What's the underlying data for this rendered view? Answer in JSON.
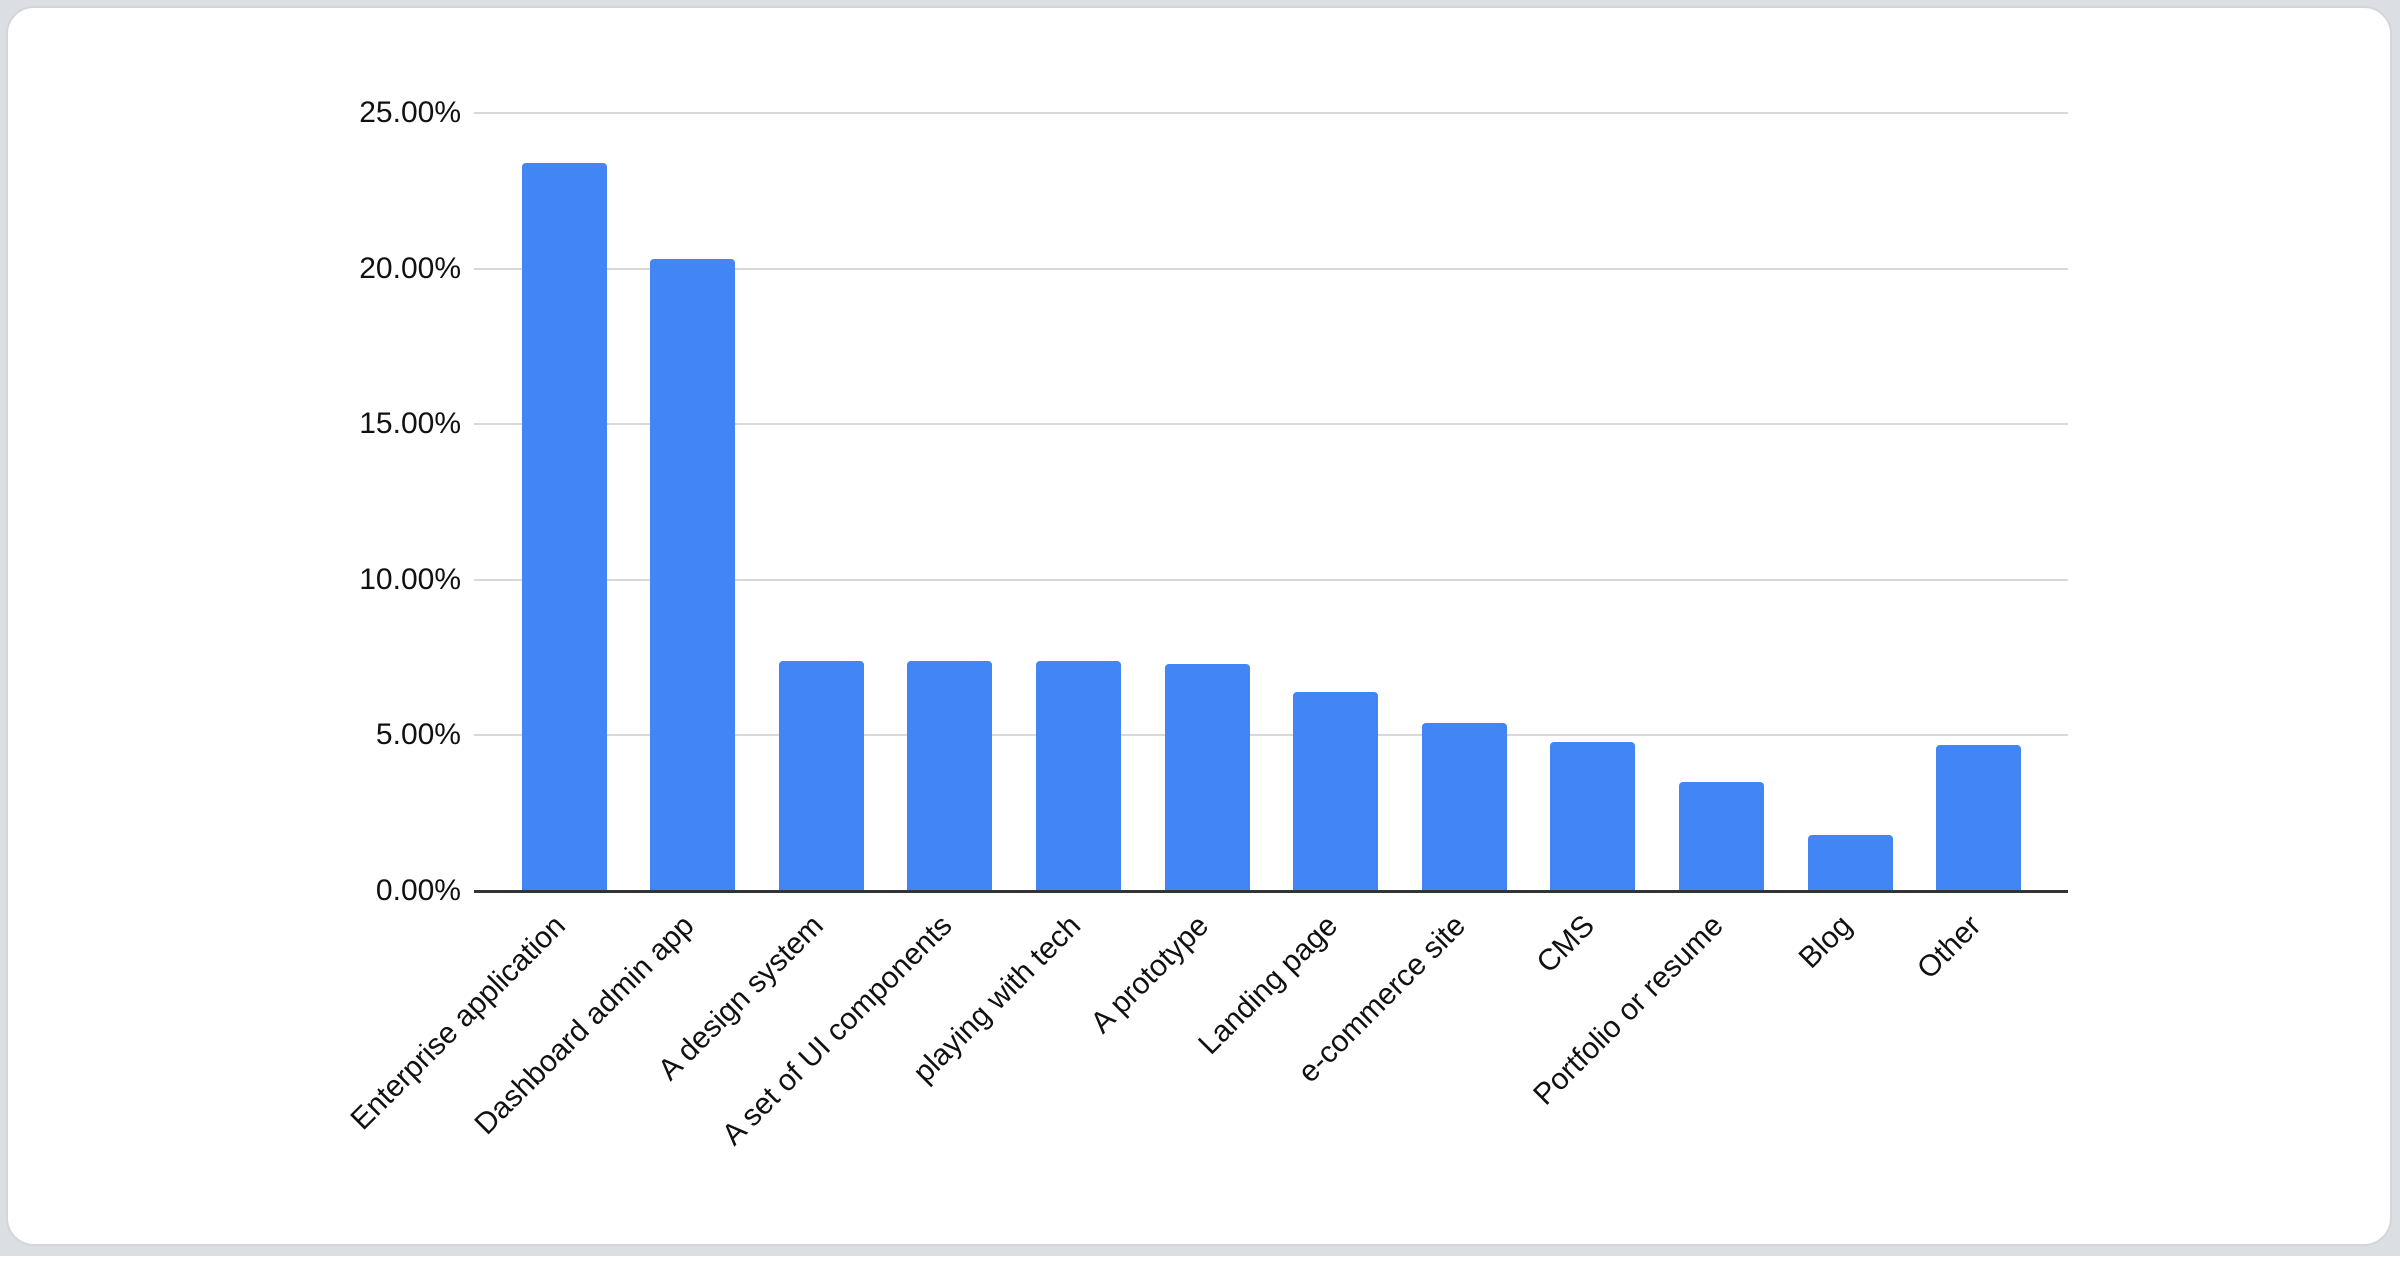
{
  "page": {
    "background_color": "#dbdee2",
    "card_background": "#ffffff",
    "card_border_color": "#d2d5d9"
  },
  "chart_data": {
    "type": "bar",
    "title": "",
    "xlabel": "",
    "ylabel": "",
    "legend": "none",
    "grid": true,
    "ylim": [
      0,
      25
    ],
    "x_label_rotation_deg": -45,
    "bar_color": "#4285f4",
    "gridline_color": "#d9d9d9",
    "axis_line_color": "#333333",
    "label_color": "#111111",
    "categories": [
      "Enterprise application",
      "Dashboard admin app",
      "A design system",
      "A set of UI components",
      "playing with tech",
      "A prototype",
      "Landing page",
      "e-commerce site",
      "CMS",
      "Portfolio or resume",
      "Blog",
      "Other"
    ],
    "values": [
      23.4,
      20.3,
      7.4,
      7.4,
      7.4,
      7.3,
      6.4,
      5.4,
      4.8,
      3.5,
      1.8,
      4.7
    ],
    "unit": "percent",
    "y_ticks": [
      {
        "value": 25,
        "label": "25.00%"
      },
      {
        "value": 20,
        "label": "20.00%"
      },
      {
        "value": 15,
        "label": "15.00%"
      },
      {
        "value": 10,
        "label": "10.00%"
      },
      {
        "value": 5,
        "label": "5.00%"
      },
      {
        "value": 0,
        "label": "0.00%"
      }
    ]
  }
}
